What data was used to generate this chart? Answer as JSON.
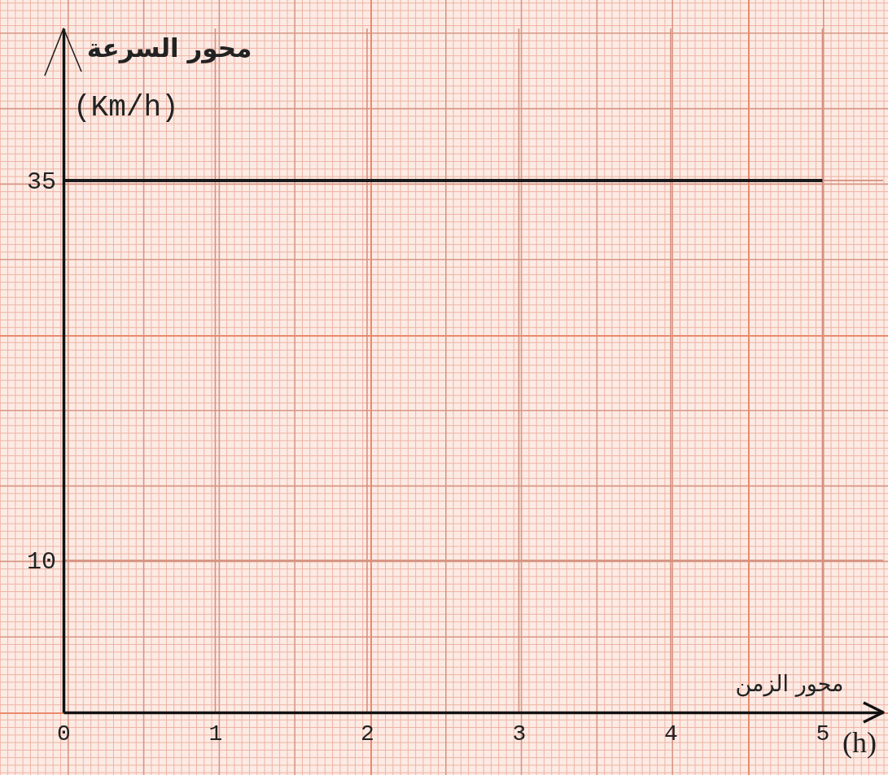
{
  "chart_data": {
    "type": "line",
    "xlabel": "محور الزمن",
    "ylabel": "محور السرعة",
    "annotations": [
      "(Km/h)",
      "(h)"
    ],
    "series": [
      {
        "x": [
          0,
          5
        ],
        "values": [
          35,
          35
        ],
        "color": "#1a1a1a"
      }
    ],
    "xlim": [
      0,
      5.4
    ],
    "ylim": [
      0,
      45
    ],
    "xticks": [
      0,
      1,
      2,
      3,
      4,
      5
    ],
    "yticks": [
      10,
      35
    ],
    "grid": true
  }
}
